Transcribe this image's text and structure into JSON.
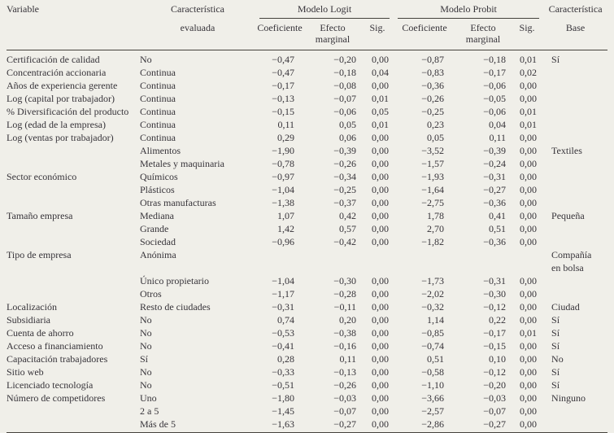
{
  "meta": {
    "colors": {
      "background": "#f0efe9",
      "text": "#363339",
      "rule": "#45423c"
    }
  },
  "table": {
    "header": {
      "variable": "Variable",
      "caracteristica_evaluada": {
        "line1": "Característica",
        "line2": "evaluada"
      },
      "modelo_logit": "Modelo Logit",
      "modelo_probit": "Modelo Probit",
      "coeficiente": "Coeficiente",
      "efecto": "Efecto",
      "marginal": "marginal",
      "sig": "Sig.",
      "caracteristica_base": {
        "line1": "Característica",
        "line2": "Base"
      }
    },
    "rows": [
      {
        "variable": "Certificación de calidad",
        "evaluada": "No",
        "logit_coef": "−0,47",
        "logit_efecto": "−0,20",
        "logit_sig": "0,00",
        "probit_coef": "−0,87",
        "probit_efecto": "−0,18",
        "probit_sig": "0,01",
        "base": "Sí"
      },
      {
        "variable": "Concentración accionaria",
        "evaluada": "Continua",
        "logit_coef": "−0,47",
        "logit_efecto": "−0,18",
        "logit_sig": "0,04",
        "probit_coef": "−0,83",
        "probit_efecto": "−0,17",
        "probit_sig": "0,02",
        "base": ""
      },
      {
        "variable": "Años de experiencia gerente",
        "evaluada": "Continua",
        "logit_coef": "−0,17",
        "logit_efecto": "−0,08",
        "logit_sig": "0,00",
        "probit_coef": "−0,36",
        "probit_efecto": "−0,06",
        "probit_sig": "0,00",
        "base": ""
      },
      {
        "variable": "Log (capital por trabajador)",
        "evaluada": "Continua",
        "logit_coef": "−0,13",
        "logit_efecto": "−0,07",
        "logit_sig": "0,01",
        "probit_coef": "−0,26",
        "probit_efecto": "−0,05",
        "probit_sig": "0,00",
        "base": ""
      },
      {
        "variable": "% Diversificación del producto",
        "evaluada": "Continua",
        "logit_coef": "−0,15",
        "logit_efecto": "−0,06",
        "logit_sig": "0,05",
        "probit_coef": "−0,25",
        "probit_efecto": "−0,06",
        "probit_sig": "0,01",
        "base": ""
      },
      {
        "variable": "Log (edad de la empresa)",
        "evaluada": "Continua",
        "logit_coef": "0,11",
        "logit_efecto": "0,05",
        "logit_sig": "0,01",
        "probit_coef": "0,23",
        "probit_efecto": "0,04",
        "probit_sig": "0,01",
        "base": ""
      },
      {
        "variable": "Log (ventas por trabajador)",
        "evaluada": "Continua",
        "logit_coef": "0,29",
        "logit_efecto": "0,06",
        "logit_sig": "0,00",
        "probit_coef": "0,05",
        "probit_efecto": "0,11",
        "probit_sig": "0,00",
        "base": ""
      },
      {
        "variable": "",
        "evaluada": "Alimentos",
        "logit_coef": "−1,90",
        "logit_efecto": "−0,39",
        "logit_sig": "0,00",
        "probit_coef": "−3,52",
        "probit_efecto": "−0,39",
        "probit_sig": "0,00",
        "base": "Textiles"
      },
      {
        "variable": "",
        "evaluada": "Metales y maquinaria",
        "logit_coef": "−0,78",
        "logit_efecto": "−0,26",
        "logit_sig": "0,00",
        "probit_coef": "−1,57",
        "probit_efecto": "−0,24",
        "probit_sig": "0,00",
        "base": ""
      },
      {
        "variable": "Sector económico",
        "evaluada": "Químicos",
        "logit_coef": "−0,97",
        "logit_efecto": "−0,34",
        "logit_sig": "0,00",
        "probit_coef": "−1,93",
        "probit_efecto": "−0,31",
        "probit_sig": "0,00",
        "base": ""
      },
      {
        "variable": "",
        "evaluada": "Plásticos",
        "logit_coef": "−1,04",
        "logit_efecto": "−0,25",
        "logit_sig": "0,00",
        "probit_coef": "−1,64",
        "probit_efecto": "−0,27",
        "probit_sig": "0,00",
        "base": ""
      },
      {
        "variable": "",
        "evaluada": "Otras manufacturas",
        "logit_coef": "−1,38",
        "logit_efecto": "−0,37",
        "logit_sig": "0,00",
        "probit_coef": "−2,75",
        "probit_efecto": "−0,36",
        "probit_sig": "0,00",
        "base": ""
      },
      {
        "variable": "Tamaño empresa",
        "evaluada": "Mediana",
        "logit_coef": "1,07",
        "logit_efecto": "0,42",
        "logit_sig": "0,00",
        "probit_coef": "1,78",
        "probit_efecto": "0,41",
        "probit_sig": "0,00",
        "base": "Pequeña"
      },
      {
        "variable": "",
        "evaluada": "Grande",
        "logit_coef": "1,42",
        "logit_efecto": "0,57",
        "logit_sig": "0,00",
        "probit_coef": "2,70",
        "probit_efecto": "0,51",
        "probit_sig": "0,00",
        "base": ""
      },
      {
        "variable": "",
        "evaluada": "Sociedad",
        "logit_coef": "−0,96",
        "logit_efecto": "−0,42",
        "logit_sig": "0,00",
        "probit_coef": "−1,82",
        "probit_efecto": "−0,36",
        "probit_sig": "0,00",
        "base": ""
      },
      {
        "variable": "Tipo de empresa",
        "evaluada": "Anónima",
        "logit_coef": "",
        "logit_efecto": "",
        "logit_sig": "",
        "probit_coef": "",
        "probit_efecto": "",
        "probit_sig": "",
        "base": "Compañía\nen bolsa"
      },
      {
        "variable": "",
        "evaluada": "Único propietario",
        "logit_coef": "−1,04",
        "logit_efecto": "−0,30",
        "logit_sig": "0,00",
        "probit_coef": "−1,73",
        "probit_efecto": "−0,31",
        "probit_sig": "0,00",
        "base": ""
      },
      {
        "variable": "",
        "evaluada": "Otros",
        "logit_coef": "−1,17",
        "logit_efecto": "−0,28",
        "logit_sig": "0,00",
        "probit_coef": "−2,02",
        "probit_efecto": "−0,30",
        "probit_sig": "0,00",
        "base": ""
      },
      {
        "variable": "Localización",
        "evaluada": "Resto de ciudades",
        "logit_coef": "−0,31",
        "logit_efecto": "−0,11",
        "logit_sig": "0,00",
        "probit_coef": "−0,32",
        "probit_efecto": "−0,12",
        "probit_sig": "0,00",
        "base": "Ciudad"
      },
      {
        "variable": "Subsidiaria",
        "evaluada": "No",
        "logit_coef": "0,74",
        "logit_efecto": "0,20",
        "logit_sig": "0,00",
        "probit_coef": "1,14",
        "probit_efecto": "0,22",
        "probit_sig": "0,00",
        "base": "Sí"
      },
      {
        "variable": "Cuenta de ahorro",
        "evaluada": "No",
        "logit_coef": "−0,53",
        "logit_efecto": "−0,38",
        "logit_sig": "0,00",
        "probit_coef": "−0,85",
        "probit_efecto": "−0,17",
        "probit_sig": "0,01",
        "base": "Sí"
      },
      {
        "variable": "Acceso a financiamiento",
        "evaluada": "No",
        "logit_coef": "−0,41",
        "logit_efecto": "−0,16",
        "logit_sig": "0,00",
        "probit_coef": "−0,74",
        "probit_efecto": "−0,15",
        "probit_sig": "0,00",
        "base": "Sí"
      },
      {
        "variable": "Capacitación trabajadores",
        "evaluada": "Sí",
        "logit_coef": "0,28",
        "logit_efecto": "0,11",
        "logit_sig": "0,00",
        "probit_coef": "0,51",
        "probit_efecto": "0,10",
        "probit_sig": "0,00",
        "base": "No"
      },
      {
        "variable": "Sitio web",
        "evaluada": "No",
        "logit_coef": "−0,33",
        "logit_efecto": "−0,13",
        "logit_sig": "0,00",
        "probit_coef": "−0,58",
        "probit_efecto": "−0,12",
        "probit_sig": "0,00",
        "base": "Sí"
      },
      {
        "variable": "Licenciado tecnología",
        "evaluada": "No",
        "logit_coef": "−0,51",
        "logit_efecto": "−0,26",
        "logit_sig": "0,00",
        "probit_coef": "−1,10",
        "probit_efecto": "−0,20",
        "probit_sig": "0,00",
        "base": "Sí"
      },
      {
        "variable": "Número de competidores",
        "evaluada": "Uno",
        "logit_coef": "−1,80",
        "logit_efecto": "−0,03",
        "logit_sig": "0,00",
        "probit_coef": "−3,66",
        "probit_efecto": "−0,03",
        "probit_sig": "0,00",
        "base": "Ninguno"
      },
      {
        "variable": "",
        "evaluada": "2 a 5",
        "logit_coef": "−1,45",
        "logit_efecto": "−0,07",
        "logit_sig": "0,00",
        "probit_coef": "−2,57",
        "probit_efecto": "−0,07",
        "probit_sig": "0,00",
        "base": ""
      },
      {
        "variable": "",
        "evaluada": "Más de 5",
        "logit_coef": "−1,63",
        "logit_efecto": "−0,27",
        "logit_sig": "0,00",
        "probit_coef": "−2,86",
        "probit_efecto": "−0,27",
        "probit_sig": "0,00",
        "base": ""
      }
    ]
  }
}
